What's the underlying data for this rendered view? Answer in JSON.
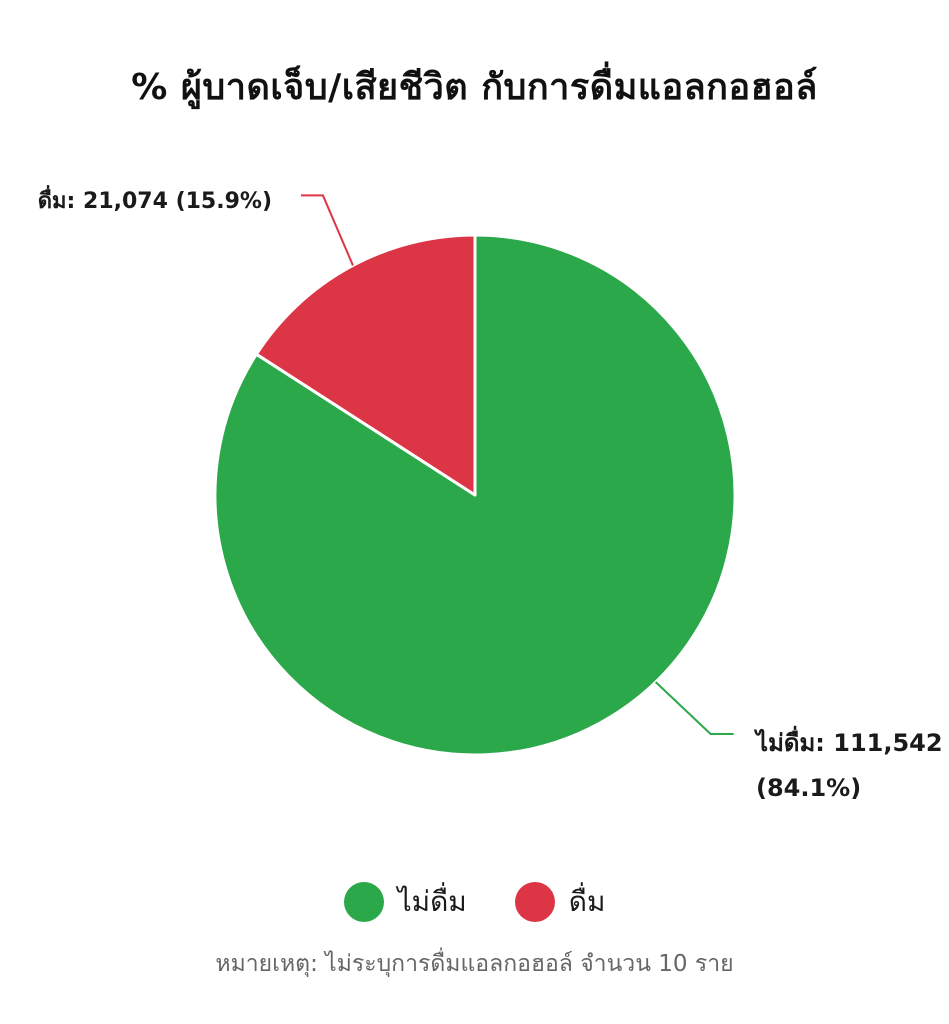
{
  "chart_data": {
    "type": "pie",
    "title": "% ผู้บาดเจ็บ/เสียชีวิต กับการดื่มแอลกอฮอล์",
    "slices": [
      {
        "name": "ไม่ดื่ม",
        "value": 111542,
        "percent": 84.1,
        "color": "#2ba84a",
        "label_line1": "ไม่ดื่ม: 111,542",
        "label_line2": "(84.1%)"
      },
      {
        "name": "ดื่ม",
        "value": 21074,
        "percent": 15.9,
        "color": "#dc3545",
        "label_line1": "ดื่ม: 21,074 (15.9%)",
        "label_line2": ""
      }
    ],
    "start_angle_deg": 0,
    "direction": "clockwise",
    "legend_position": "bottom",
    "footnote": "หมายเหตุ: ไม่ระบุการดื่มแอลกอฮอล์ จำนวน 10 ราย"
  }
}
